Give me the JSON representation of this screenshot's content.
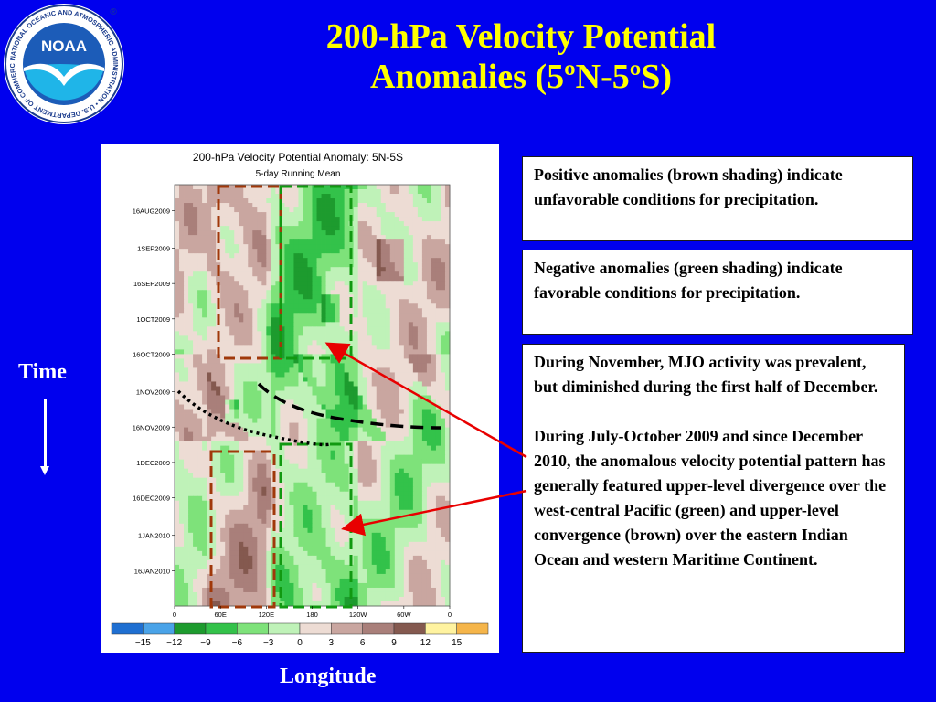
{
  "slide": {
    "title_line1": "200-hPa Velocity Potential",
    "title_line2": "Anomalies (5ºN-5ºS)",
    "time_label": "Time",
    "longitude_label": "Longitude",
    "notes": [
      "Positive anomalies (brown shading) indicate unfavorable conditions for precipitation.",
      "Negative anomalies (green shading) indicate favorable conditions for precipitation.",
      "During November, MJO activity was prevalent, but diminished during the first half of December.",
      "During July-October 2009 and since December 2010, the anomalous velocity potential pattern has generally featured upper-level divergence over the west-central Pacific (green) and upper-level convergence (brown) over the eastern Indian Ocean and western Maritime Continent."
    ]
  },
  "logo": {
    "text": "NOAA",
    "ring_text": "NATIONAL OCEANIC AND ATMOSPHERIC ADMINISTRATION • U.S. DEPARTMENT OF COMMERCE",
    "registered": "®"
  },
  "chart_data": {
    "type": "heatmap",
    "title": "200-hPa Velocity Potential Anomaly: 5N-5S",
    "subtitle": "5-day Running Mean",
    "x_tick_labels": [
      "0",
      "60E",
      "120E",
      "180",
      "120W",
      "60W",
      "0"
    ],
    "x_tick_lon": [
      0,
      60,
      120,
      180,
      240,
      300,
      360
    ],
    "y_tick_labels": [
      "16AUG2009",
      "1SEP2009",
      "16SEP2009",
      "1OCT2009",
      "16OCT2009",
      "1NOV2009",
      "16NOV2009",
      "1DEC2009",
      "16DEC2009",
      "1JAN2010",
      "16JAN2010"
    ],
    "y_range": [
      "2009-08-05",
      "2010-01-31"
    ],
    "colorbar_ticks": [
      -15,
      -12,
      -9,
      -6,
      -3,
      0,
      3,
      6,
      9,
      12,
      15
    ],
    "colorbar_colors": [
      "#1f6fd1",
      "#4aa3e8",
      "#1d9b2e",
      "#33c24a",
      "#7ee27a",
      "#bff2b8",
      "#eddcd4",
      "#c9a6a0",
      "#a97f7a",
      "#84594f",
      "#fff3a0",
      "#f5b54a"
    ],
    "annotation_colors": {
      "box_brown": "#a0380a",
      "box_green": "#119911",
      "arrow": "#e80000",
      "mjo_line": "#000000"
    }
  }
}
